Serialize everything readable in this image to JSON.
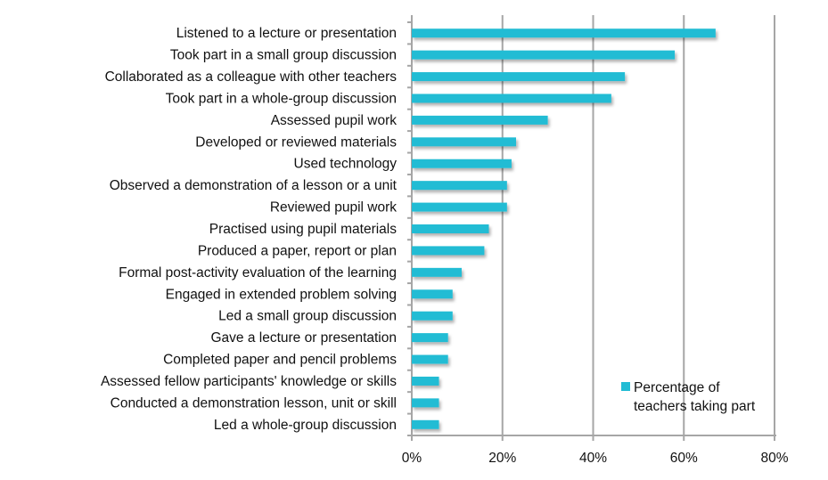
{
  "chart_data": {
    "type": "bar",
    "orientation": "horizontal",
    "categories": [
      "Listened to a lecture or presentation",
      "Took part in a small group discussion",
      "Collaborated as a colleague with other teachers",
      "Took part in a whole-group discussion",
      "Assessed pupil work",
      "Developed or reviewed materials",
      "Used technology",
      "Observed a demonstration of a lesson or a unit",
      "Reviewed pupil work",
      "Practised using pupil materials",
      "Produced a paper, report or plan",
      "Formal post-activity evaluation of the learning",
      "Engaged in extended problem solving",
      "Led a small group discussion",
      "Gave a lecture or presentation",
      "Completed paper and pencil problems",
      "Assessed fellow participants' knowledge or skills",
      "Conducted a demonstration lesson, unit or skill",
      "Led a whole-group discussion"
    ],
    "series": [
      {
        "name": "Percentage of teachers taking part",
        "values": [
          67,
          58,
          47,
          44,
          30,
          23,
          22,
          21,
          21,
          17,
          16,
          11,
          9,
          9,
          8,
          8,
          6,
          6,
          6
        ]
      }
    ],
    "xlim": [
      0,
      80
    ],
    "xticks": [
      "0%",
      "20%",
      "40%",
      "60%",
      "80%"
    ],
    "grid": true,
    "legend": "bottom-right",
    "legend_lines": [
      "Percentage of",
      "teachers taking part"
    ],
    "colors": {
      "bar": "#22bcd4",
      "grid": "#a6a6a6"
    }
  }
}
